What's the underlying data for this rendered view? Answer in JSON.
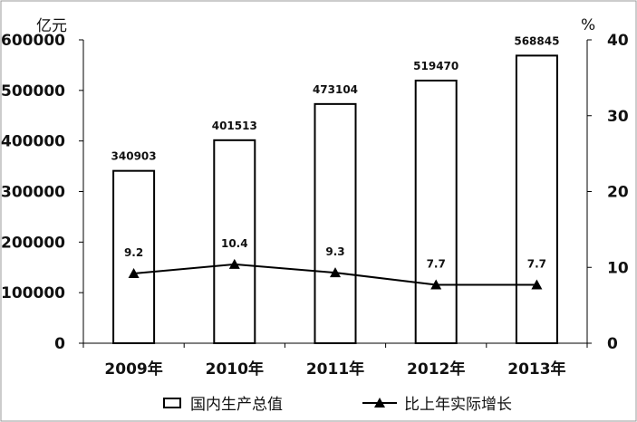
{
  "chart_data": {
    "type": "bar",
    "categories": [
      "2009年",
      "2010年",
      "2011年",
      "2012年",
      "2013年"
    ],
    "series": [
      {
        "name": "国内生产总值",
        "type": "bar",
        "axis": "left",
        "values": [
          340903,
          401513,
          473104,
          519470,
          568845
        ]
      },
      {
        "name": "比上年实际增长",
        "type": "line",
        "axis": "right",
        "values": [
          9.2,
          10.4,
          9.3,
          7.7,
          7.7
        ]
      }
    ],
    "ylabel_left": "亿元",
    "ylabel_right": "%",
    "ylim_left": [
      0,
      600000
    ],
    "ylim_right": [
      0,
      40
    ],
    "yticks_left": [
      0,
      100000,
      200000,
      300000,
      400000,
      500000,
      600000
    ],
    "yticks_right": [
      0,
      10,
      20,
      30,
      40
    ],
    "grid": false,
    "legend_position": "bottom"
  }
}
